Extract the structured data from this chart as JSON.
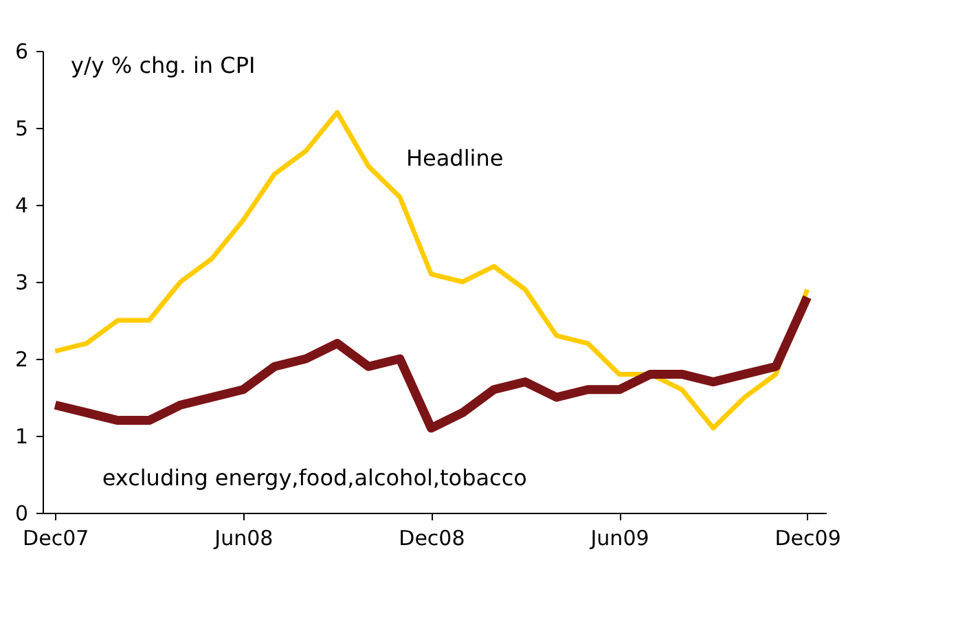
{
  "chart_data": {
    "type": "line",
    "ylabel": "y/y % chg. in CPI",
    "categories": [
      "Dec07",
      null,
      null,
      null,
      null,
      null,
      "Jun08",
      null,
      null,
      null,
      null,
      null,
      "Dec08",
      null,
      null,
      null,
      null,
      null,
      "Jun09",
      null,
      null,
      null,
      null,
      null,
      "Dec09"
    ],
    "series": [
      {
        "name": "Headline",
        "color": "#ffcc00",
        "values": [
          2.1,
          2.2,
          2.5,
          2.5,
          3.0,
          3.3,
          3.8,
          4.4,
          4.7,
          5.2,
          4.5,
          4.1,
          3.1,
          3.0,
          3.2,
          2.9,
          2.3,
          2.2,
          1.8,
          1.8,
          1.6,
          1.1,
          1.5,
          1.8,
          2.9
        ]
      },
      {
        "name": "excluding energy,food,alcohol,tobacco",
        "color": "#7b1416",
        "values": [
          1.4,
          1.3,
          1.2,
          1.2,
          1.4,
          1.5,
          1.6,
          1.9,
          2.0,
          2.2,
          1.9,
          2.0,
          1.1,
          1.3,
          1.6,
          1.7,
          1.5,
          1.6,
          1.6,
          1.8,
          1.8,
          1.7,
          1.8,
          1.9,
          2.8
        ]
      }
    ],
    "ylim": [
      0,
      6
    ],
    "yticks": [
      0,
      1,
      2,
      3,
      4,
      5,
      6
    ],
    "grid": false,
    "marker": "none",
    "line_style": "solid"
  }
}
